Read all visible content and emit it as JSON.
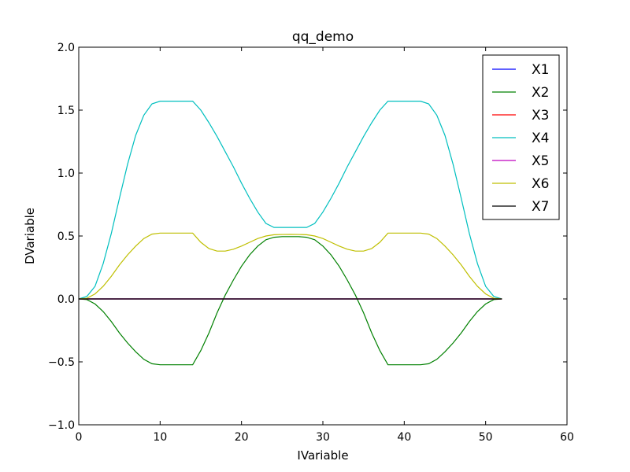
{
  "chart_data": {
    "type": "line",
    "title": "qq_demo",
    "xlabel": "IVariable",
    "ylabel": "DVariable",
    "xlim": [
      0,
      60
    ],
    "ylim": [
      -1.0,
      2.0
    ],
    "x_ticks": [
      0,
      10,
      20,
      30,
      40,
      50,
      60
    ],
    "y_ticks": [
      -1.0,
      -0.5,
      0.0,
      0.5,
      1.0,
      1.5,
      2.0
    ],
    "x_tick_labels": [
      "0",
      "10",
      "20",
      "30",
      "40",
      "50",
      "60"
    ],
    "y_tick_labels": [
      "−1.0",
      "−0.5",
      "0.0",
      "0.5",
      "1.0",
      "1.5",
      "2.0"
    ],
    "grid": false,
    "legend_position": "top-right",
    "series": [
      {
        "name": "X1",
        "color": "#0000ff",
        "points": [
          [
            0,
            0
          ],
          [
            52,
            0
          ]
        ]
      },
      {
        "name": "X2",
        "color": "#008000",
        "points": [
          [
            0,
            0
          ],
          [
            1,
            -0.005
          ],
          [
            2,
            -0.04
          ],
          [
            3,
            -0.1
          ],
          [
            4,
            -0.18
          ],
          [
            5,
            -0.27
          ],
          [
            6,
            -0.35
          ],
          [
            7,
            -0.42
          ],
          [
            8,
            -0.48
          ],
          [
            9,
            -0.515
          ],
          [
            10,
            -0.523
          ],
          [
            14,
            -0.523
          ],
          [
            15,
            -0.41
          ],
          [
            16,
            -0.27
          ],
          [
            17,
            -0.11
          ],
          [
            18,
            0.03
          ],
          [
            19,
            0.15
          ],
          [
            20,
            0.26
          ],
          [
            21,
            0.35
          ],
          [
            22,
            0.42
          ],
          [
            23,
            0.47
          ],
          [
            24,
            0.49
          ],
          [
            25,
            0.495
          ],
          [
            26,
            0.495
          ],
          [
            27,
            0.495
          ],
          [
            28,
            0.49
          ],
          [
            29,
            0.47
          ],
          [
            30,
            0.42
          ],
          [
            31,
            0.35
          ],
          [
            32,
            0.26
          ],
          [
            33,
            0.15
          ],
          [
            34,
            0.03
          ],
          [
            35,
            -0.11
          ],
          [
            36,
            -0.27
          ],
          [
            37,
            -0.41
          ],
          [
            38,
            -0.523
          ],
          [
            42,
            -0.523
          ],
          [
            43,
            -0.515
          ],
          [
            44,
            -0.48
          ],
          [
            45,
            -0.42
          ],
          [
            46,
            -0.35
          ],
          [
            47,
            -0.27
          ],
          [
            48,
            -0.18
          ],
          [
            49,
            -0.1
          ],
          [
            50,
            -0.04
          ],
          [
            51,
            -0.005
          ],
          [
            52,
            0
          ]
        ]
      },
      {
        "name": "X3",
        "color": "#ff0000",
        "points": [
          [
            0,
            0
          ],
          [
            52,
            0
          ]
        ]
      },
      {
        "name": "X4",
        "color": "#00bfbf",
        "points": [
          [
            0,
            0
          ],
          [
            1,
            0.02
          ],
          [
            2,
            0.1
          ],
          [
            3,
            0.28
          ],
          [
            4,
            0.52
          ],
          [
            5,
            0.8
          ],
          [
            6,
            1.07
          ],
          [
            7,
            1.3
          ],
          [
            8,
            1.46
          ],
          [
            9,
            1.55
          ],
          [
            10,
            1.571
          ],
          [
            14,
            1.571
          ],
          [
            15,
            1.5
          ],
          [
            16,
            1.4
          ],
          [
            17,
            1.29
          ],
          [
            18,
            1.17
          ],
          [
            19,
            1.05
          ],
          [
            20,
            0.92
          ],
          [
            21,
            0.8
          ],
          [
            22,
            0.69
          ],
          [
            23,
            0.6
          ],
          [
            24,
            0.568
          ],
          [
            28,
            0.568
          ],
          [
            29,
            0.6
          ],
          [
            30,
            0.69
          ],
          [
            31,
            0.8
          ],
          [
            32,
            0.92
          ],
          [
            33,
            1.05
          ],
          [
            34,
            1.17
          ],
          [
            35,
            1.29
          ],
          [
            36,
            1.4
          ],
          [
            37,
            1.5
          ],
          [
            38,
            1.571
          ],
          [
            42,
            1.571
          ],
          [
            43,
            1.55
          ],
          [
            44,
            1.46
          ],
          [
            45,
            1.3
          ],
          [
            46,
            1.07
          ],
          [
            47,
            0.8
          ],
          [
            48,
            0.52
          ],
          [
            49,
            0.28
          ],
          [
            50,
            0.1
          ],
          [
            51,
            0.02
          ],
          [
            52,
            0
          ]
        ]
      },
      {
        "name": "X5",
        "color": "#bf00bf",
        "points": [
          [
            0,
            0
          ],
          [
            52,
            0
          ]
        ]
      },
      {
        "name": "X6",
        "color": "#bfbf00",
        "points": [
          [
            0,
            0
          ],
          [
            1,
            0.005
          ],
          [
            2,
            0.04
          ],
          [
            3,
            0.1
          ],
          [
            4,
            0.18
          ],
          [
            5,
            0.27
          ],
          [
            6,
            0.35
          ],
          [
            7,
            0.42
          ],
          [
            8,
            0.48
          ],
          [
            9,
            0.515
          ],
          [
            10,
            0.523
          ],
          [
            14,
            0.523
          ],
          [
            15,
            0.45
          ],
          [
            16,
            0.4
          ],
          [
            17,
            0.38
          ],
          [
            18,
            0.38
          ],
          [
            19,
            0.395
          ],
          [
            20,
            0.42
          ],
          [
            21,
            0.45
          ],
          [
            22,
            0.48
          ],
          [
            23,
            0.5
          ],
          [
            24,
            0.51
          ],
          [
            25,
            0.512
          ],
          [
            26,
            0.513
          ],
          [
            27,
            0.512
          ],
          [
            28,
            0.51
          ],
          [
            29,
            0.5
          ],
          [
            30,
            0.48
          ],
          [
            31,
            0.45
          ],
          [
            32,
            0.42
          ],
          [
            33,
            0.395
          ],
          [
            34,
            0.38
          ],
          [
            35,
            0.38
          ],
          [
            36,
            0.4
          ],
          [
            37,
            0.45
          ],
          [
            38,
            0.523
          ],
          [
            42,
            0.523
          ],
          [
            43,
            0.515
          ],
          [
            44,
            0.48
          ],
          [
            45,
            0.42
          ],
          [
            46,
            0.35
          ],
          [
            47,
            0.27
          ],
          [
            48,
            0.18
          ],
          [
            49,
            0.1
          ],
          [
            50,
            0.04
          ],
          [
            51,
            0.005
          ],
          [
            52,
            0
          ]
        ]
      },
      {
        "name": "X7",
        "color": "#000000",
        "points": [
          [
            0,
            0
          ],
          [
            52,
            0
          ]
        ]
      }
    ]
  }
}
